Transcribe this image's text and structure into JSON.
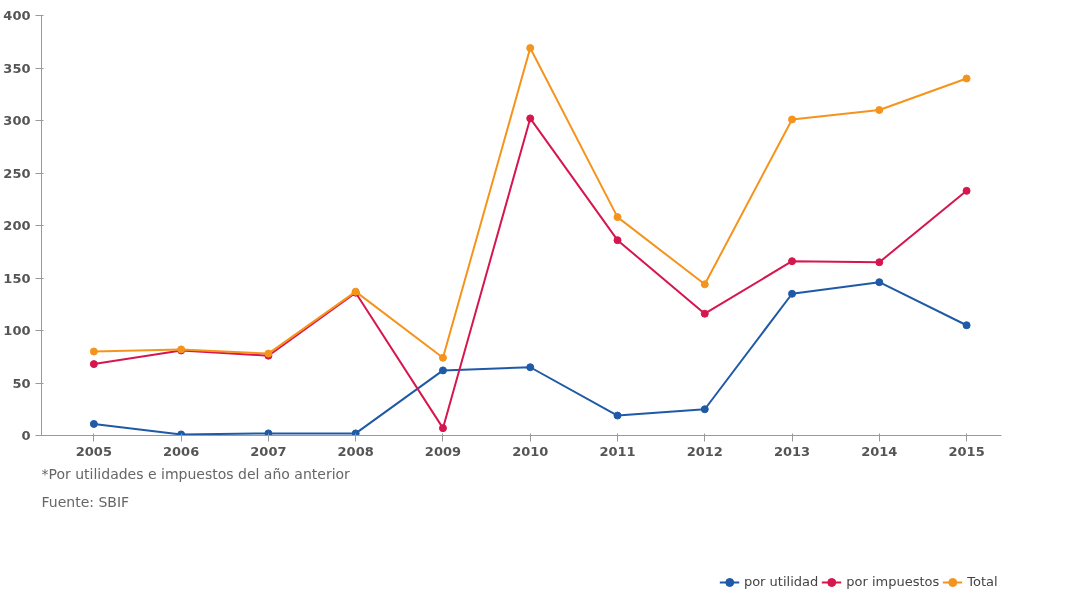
{
  "chart_data": {
    "type": "line",
    "categories": [
      "2005",
      "2006",
      "2007",
      "2008",
      "2009",
      "2010",
      "2011",
      "2012",
      "2013",
      "2014",
      "2015"
    ],
    "series": [
      {
        "name": "por utilidad",
        "color": "#1f5aa6",
        "values": [
          11,
          1,
          2,
          2,
          62,
          65,
          19,
          25,
          135,
          146,
          105
        ]
      },
      {
        "name": "por impuestos",
        "color": "#d6174f",
        "values": [
          68,
          81,
          76,
          136,
          7,
          302,
          186,
          116,
          166,
          165,
          233
        ]
      },
      {
        "name": "Total",
        "color": "#f5941d",
        "values": [
          80,
          82,
          78,
          137,
          74,
          369,
          208,
          144,
          301,
          310,
          340
        ]
      }
    ],
    "ylim": [
      0,
      400
    ],
    "yticks": [
      0,
      50,
      100,
      150,
      200,
      250,
      300,
      350,
      400
    ],
    "grid": false,
    "legend": "bottom right",
    "marker": "circle",
    "line_style": "solid",
    "annotations": [
      "*Por utilidades e impuestos del año anterior",
      "Fuente: SBIF"
    ]
  }
}
